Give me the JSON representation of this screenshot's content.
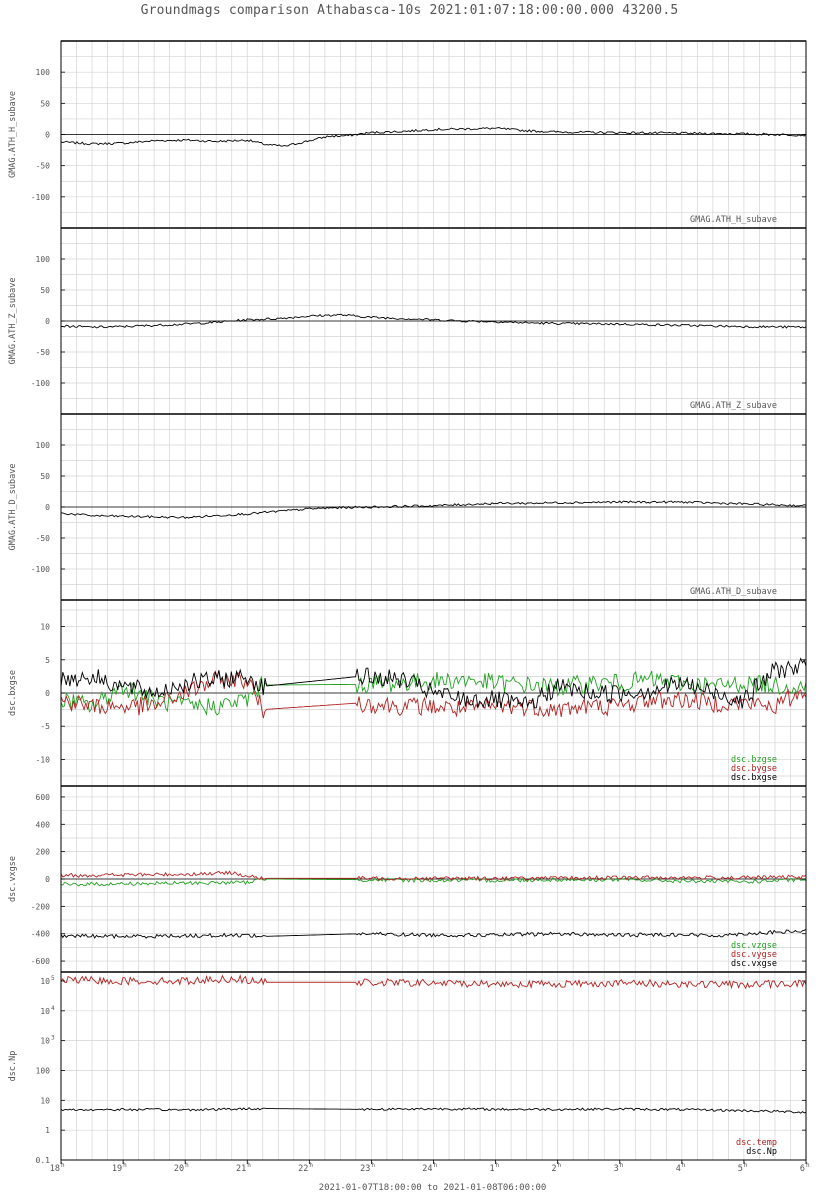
{
  "title": "Groundmags comparison Athabasca-10s 2021:01:07:18:00:00.000 43200.5",
  "time_range_label": "2021-01-07T18:00:00 to 2021-01-08T06:00:00",
  "colors": {
    "black": "#000000",
    "red": "#b22222",
    "green": "#22a022",
    "grid": "#d4d4d4"
  },
  "chart_data": [
    {
      "type": "line",
      "ylabel": "GMAG.ATH_H_subave",
      "yticks": [
        100,
        50,
        0,
        -50,
        -100
      ],
      "ylim": [
        -150,
        150
      ],
      "series": [
        {
          "name": "GMAG.ATH_H_subave",
          "color": "black",
          "x": [
            18,
            18.5,
            19,
            19.5,
            20,
            20.5,
            21,
            21.3,
            21.6,
            22,
            22.3,
            22.6,
            23,
            23.5,
            24,
            24.5,
            25,
            25.5,
            26,
            27,
            28,
            29,
            30
          ],
          "y": [
            -12,
            -15,
            -14,
            -10,
            -9,
            -11,
            -9,
            -16,
            -19,
            -10,
            -3,
            -2,
            3,
            5,
            8,
            9,
            10,
            6,
            4,
            3,
            2,
            1,
            -1
          ]
        }
      ]
    },
    {
      "type": "line",
      "ylabel": "GMAG.ATH_Z_subave",
      "yticks": [
        100,
        50,
        0,
        -50,
        -100
      ],
      "ylim": [
        -150,
        150
      ],
      "series": [
        {
          "name": "GMAG.ATH_Z_subave",
          "color": "black",
          "x": [
            18,
            18.5,
            19,
            19.5,
            20,
            20.5,
            21,
            21.5,
            22,
            22.5,
            23,
            23.5,
            24,
            24.5,
            25,
            25.5,
            26,
            27,
            28,
            29,
            30
          ],
          "y": [
            -8,
            -10,
            -9,
            -7,
            -5,
            -2,
            2,
            4,
            8,
            10,
            6,
            4,
            2,
            0,
            -1,
            -3,
            -4,
            -5,
            -7,
            -9,
            -10
          ]
        }
      ]
    },
    {
      "type": "line",
      "ylabel": "GMAG.ATH_D_subave",
      "yticks": [
        100,
        50,
        0,
        -50,
        -100
      ],
      "ylim": [
        -150,
        150
      ],
      "series": [
        {
          "name": "GMAG.ATH_D_subave",
          "color": "black",
          "x": [
            18,
            18.5,
            19,
            19.5,
            20,
            20.5,
            21,
            21.5,
            22,
            22.5,
            23,
            23.5,
            24,
            24.5,
            25,
            25.5,
            26,
            27,
            28,
            29,
            30
          ],
          "y": [
            -10,
            -14,
            -15,
            -16,
            -17,
            -14,
            -11,
            -7,
            -3,
            -1,
            0,
            1,
            2,
            4,
            6,
            6,
            7,
            8,
            8,
            5,
            2
          ]
        }
      ]
    },
    {
      "type": "line",
      "ylabel": "dsc.bxgse",
      "yticks": [
        10,
        5,
        0,
        -5,
        -10
      ],
      "ylim": [
        -14,
        14
      ],
      "legend": [
        "dsc.bzgse",
        "dsc.bygse",
        "dsc.bxgse"
      ],
      "series": [
        {
          "name": "dsc.bzgse",
          "color": "green",
          "x": [
            18,
            18.5,
            19,
            19.5,
            20,
            20.5,
            21,
            21.25,
            22.8,
            23.5,
            24,
            24.5,
            25,
            25.5,
            26,
            26.5,
            27,
            27.5,
            28,
            28.5,
            29,
            29.5,
            30
          ],
          "y": [
            -1,
            -2,
            1,
            -1,
            -2,
            -2,
            -1,
            1.2,
            1.3,
            1.5,
            1.8,
            2,
            1.5,
            1.2,
            0.8,
            1.5,
            1.5,
            2,
            1.5,
            1,
            1.5,
            1.2,
            1
          ]
        },
        {
          "name": "dsc.bygse",
          "color": "red",
          "x": [
            18,
            18.5,
            19,
            19.5,
            20,
            20.5,
            21,
            21.25,
            22.8,
            23.5,
            24,
            24.5,
            25,
            25.5,
            26,
            26.5,
            27,
            27.5,
            28,
            28.5,
            29,
            29.5,
            30
          ],
          "y": [
            -1,
            -2,
            -2,
            -2,
            0,
            2,
            2,
            -2.5,
            -1.5,
            -2,
            -2,
            -2.5,
            -2,
            -2,
            -2.5,
            -2,
            -2,
            -1,
            -1,
            -1.5,
            -1.5,
            -2,
            0.5
          ]
        },
        {
          "name": "dsc.bxgse",
          "color": "black",
          "x": [
            18,
            18.5,
            19,
            19.5,
            20,
            20.5,
            21,
            21.25,
            22.8,
            23.5,
            24,
            24.5,
            25,
            25.5,
            26,
            26.5,
            27,
            27.5,
            28,
            28.5,
            29,
            29.5,
            30
          ],
          "y": [
            2,
            2.5,
            1,
            0,
            1.5,
            2,
            2.5,
            1,
            2.5,
            2,
            0,
            -1,
            -1,
            -2,
            1,
            0,
            0,
            0.5,
            1.5,
            0,
            -1,
            3.5,
            4
          ]
        }
      ]
    },
    {
      "type": "line",
      "ylabel": "dsc.vxgse",
      "yticks": [
        600,
        400,
        200,
        0,
        -200,
        -400,
        -600
      ],
      "ylim": [
        -680,
        680
      ],
      "legend": [
        "dsc.vzgse",
        "dsc.vygse",
        "dsc.vxgse"
      ],
      "series": [
        {
          "name": "dsc.vzgse",
          "color": "green",
          "x": [
            18,
            19,
            20,
            21,
            21.25,
            22.8,
            24,
            25,
            26,
            27,
            28,
            29,
            30
          ],
          "y": [
            -40,
            -35,
            -30,
            -25,
            0,
            -5,
            -10,
            -10,
            -5,
            -5,
            -15,
            -20,
            -5
          ]
        },
        {
          "name": "dsc.vygse",
          "color": "red",
          "x": [
            18,
            19,
            20,
            20.8,
            21,
            21.25,
            22.8,
            24,
            25,
            26,
            27,
            28,
            29,
            30
          ],
          "y": [
            25,
            30,
            35,
            45,
            20,
            5,
            5,
            5,
            5,
            5,
            10,
            10,
            10,
            15
          ]
        },
        {
          "name": "dsc.vxgse",
          "color": "black",
          "x": [
            18,
            19,
            20,
            21,
            21.25,
            22.8,
            24,
            25,
            26,
            27,
            28,
            28.5,
            29,
            29.5,
            30
          ],
          "y": [
            -415,
            -420,
            -415,
            -410,
            -420,
            -400,
            -410,
            -410,
            -400,
            -410,
            -405,
            -415,
            -400,
            -390,
            -380
          ]
        }
      ]
    },
    {
      "type": "line",
      "ylabel": "dsc.Np",
      "yscale": "log",
      "yticks": [
        "10^5",
        "10^4",
        "10^3",
        "100",
        "10",
        "1",
        "0.1"
      ],
      "ylim": [
        0.1,
        200000
      ],
      "legend": [
        "dsc.temp",
        "dsc.Np"
      ],
      "series": [
        {
          "name": "dsc.temp",
          "color": "red",
          "x": [
            18,
            19,
            20,
            20.8,
            21.25,
            22.8,
            24,
            25,
            26,
            27,
            28,
            29,
            30
          ],
          "y": [
            110000,
            100000,
            100000,
            120000,
            90000,
            90000,
            85000,
            80000,
            80000,
            85000,
            80000,
            75000,
            85000
          ]
        },
        {
          "name": "dsc.Np",
          "color": "black",
          "x": [
            18,
            19,
            20,
            21,
            21.25,
            22.8,
            24,
            25,
            26,
            27,
            28,
            29,
            30
          ],
          "y": [
            4.8,
            4.9,
            4.8,
            5.2,
            5.3,
            5.0,
            5.2,
            5.0,
            5.0,
            5.1,
            4.9,
            4.5,
            4.0
          ]
        }
      ]
    }
  ],
  "x_axis": {
    "type": "time",
    "range": [
      "2021-01-07T18:00:00",
      "2021-01-08T06:00:00"
    ],
    "tick_labels": [
      "18",
      "19",
      "20",
      "21",
      "22",
      "23",
      "24",
      "1",
      "2",
      "3",
      "4",
      "5",
      "6"
    ],
    "tick_suffix": "h"
  }
}
